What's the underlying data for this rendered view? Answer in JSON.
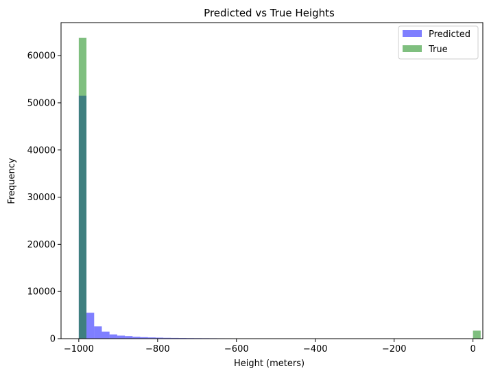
{
  "chart_data": {
    "type": "bar",
    "subtype": "histogram",
    "title": "Predicted vs True Heights",
    "xlabel": "Height (meters)",
    "ylabel": "Frequency",
    "xlim": [
      -1045,
      25
    ],
    "ylim": [
      0,
      67000
    ],
    "x_ticks": [
      -1000,
      -800,
      -600,
      -400,
      -200,
      0
    ],
    "y_ticks": [
      0,
      10000,
      20000,
      30000,
      40000,
      50000,
      60000
    ],
    "grid": false,
    "legend_position": "top-right",
    "series": [
      {
        "name": "Predicted",
        "color": "#0000ff",
        "alpha": 0.5,
        "bin_edges": [
          -1000,
          -980.5,
          -961,
          -941.5,
          -922,
          -902.5,
          -883,
          -863.5,
          -844,
          -824.5,
          -805,
          -785.5,
          -766,
          -746.5,
          -727,
          -707.5,
          -688,
          -668.5,
          -649,
          -629.5,
          -610,
          -590.5,
          -571,
          -551.5,
          -532,
          -512.5,
          -493,
          -473.5,
          -454,
          -434.5
        ],
        "values": [
          51500,
          5500,
          2600,
          1500,
          900,
          650,
          550,
          400,
          320,
          260,
          220,
          180,
          160,
          140,
          120,
          110,
          100,
          90,
          80,
          75,
          70,
          65,
          60,
          55,
          50,
          45,
          40,
          35,
          30
        ]
      },
      {
        "name": "True",
        "color": "#008000",
        "alpha": 0.5,
        "bin_edges": [
          -1000,
          -980.5,
          0,
          19.5
        ],
        "values": [
          63800,
          0,
          1700
        ]
      }
    ]
  }
}
